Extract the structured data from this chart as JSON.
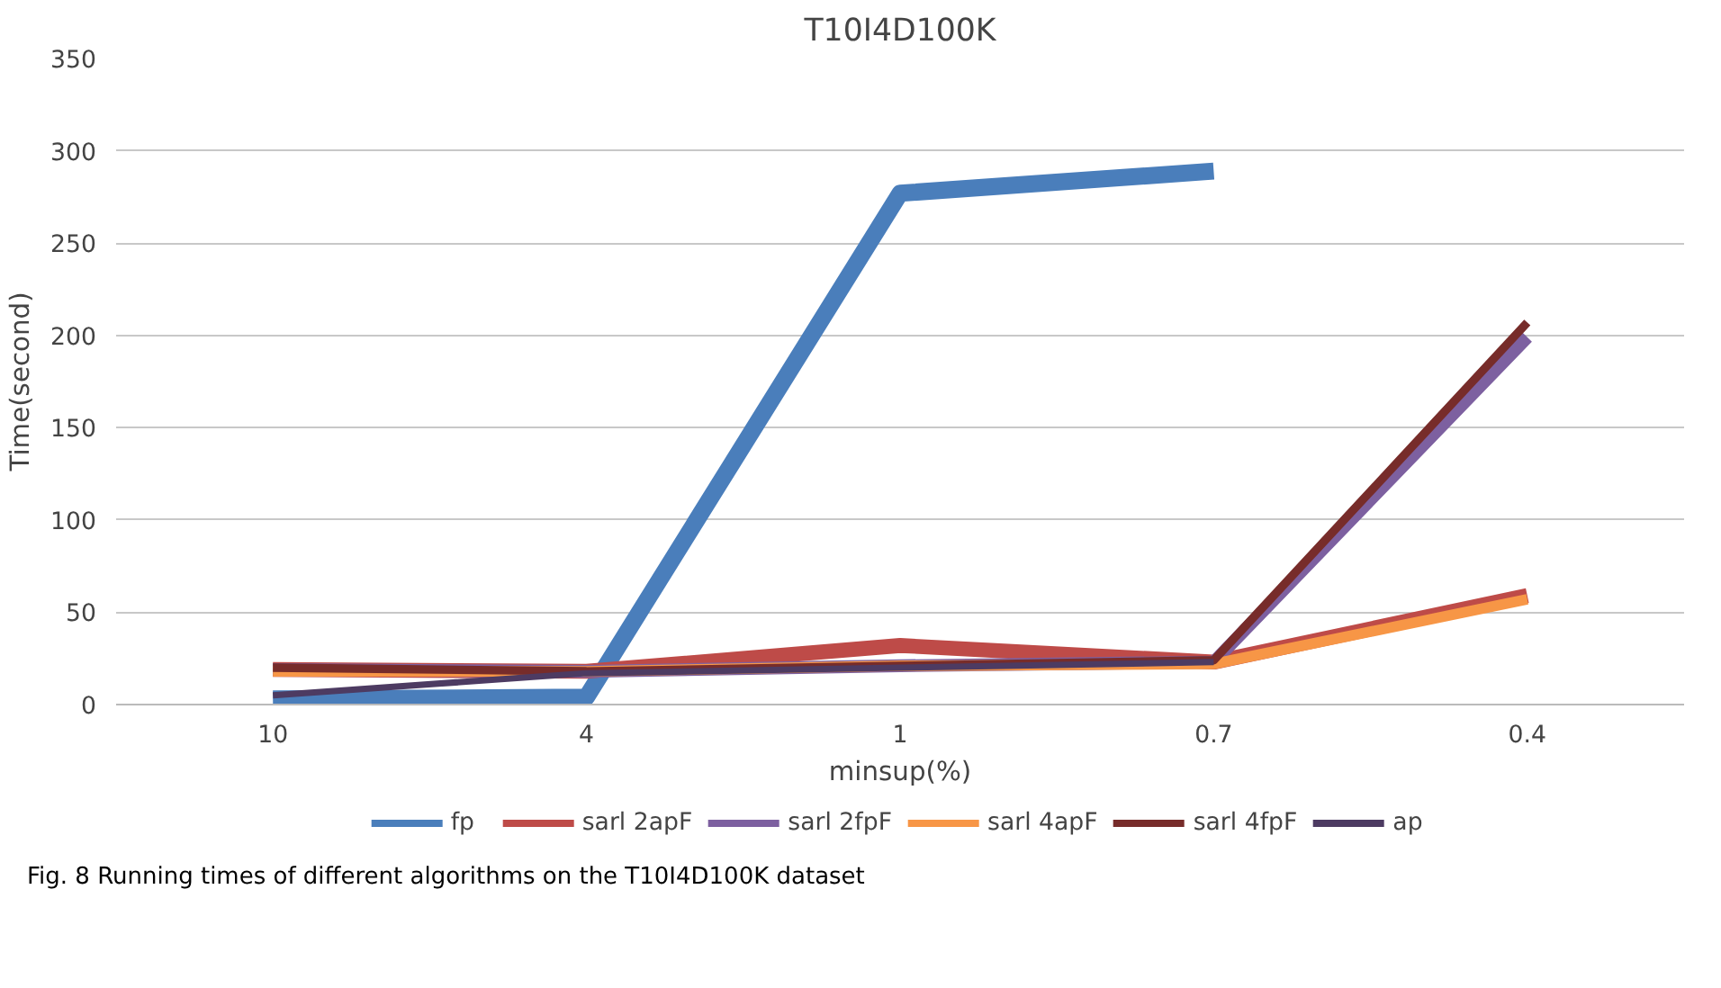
{
  "chart_data": {
    "type": "line",
    "title": "T10I4D100K",
    "xlabel": "minsup(%)",
    "ylabel": "Time(second)",
    "categories": [
      "10",
      "4",
      "1",
      "0.7",
      "0.4"
    ],
    "series": [
      {
        "name": "fp",
        "color": "#4a7ebb",
        "values": [
          3,
          4,
          277,
          289,
          null
        ]
      },
      {
        "name": "sarl 2apF",
        "color": "#be4b48",
        "values": [
          19,
          18,
          32,
          23,
          59
        ]
      },
      {
        "name": "sarl 2fpF",
        "color": "#7d60a0",
        "values": [
          19,
          18,
          21,
          23,
          199
        ]
      },
      {
        "name": "sarl 4apF",
        "color": "#f79646",
        "values": [
          18,
          18,
          21,
          22,
          57
        ]
      },
      {
        "name": "sarl 4fpF",
        "color": "#772c2a",
        "values": [
          20,
          18,
          21,
          24,
          207
        ]
      },
      {
        "name": "ap",
        "color": "#4d3b62",
        "values": [
          5,
          17,
          20,
          23,
          null
        ]
      }
    ],
    "ylim": [
      0,
      350
    ],
    "yticks": [
      0,
      50,
      100,
      150,
      200,
      250,
      300,
      350
    ],
    "grid": "y",
    "legend": "bottom",
    "marker": "none",
    "line_style": "solid",
    "annotations": [
      "Fig. 8  Running times of different algorithms on the T10I4D100K dataset"
    ]
  }
}
